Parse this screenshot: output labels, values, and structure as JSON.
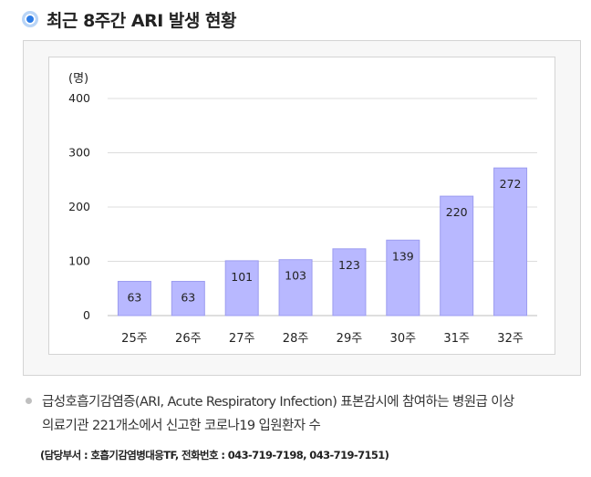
{
  "header": {
    "title": "최근 8주간 ARI 발생 현황"
  },
  "chart_data": {
    "type": "bar",
    "unit_label": "(명)",
    "categories": [
      "25주",
      "26주",
      "27주",
      "28주",
      "29주",
      "30주",
      "31주",
      "32주"
    ],
    "values": [
      63,
      63,
      101,
      103,
      123,
      139,
      220,
      272
    ],
    "y_ticks": [
      0,
      100,
      200,
      300,
      400
    ],
    "ylim": [
      0,
      400
    ],
    "grid": true,
    "legend": "none",
    "bar_color": "#b8b8ff",
    "bar_edge_color": "#9c9cf0"
  },
  "footnote": {
    "line1": "급성호흡기감염증(ARI, Acute Respiratory Infection) 표본감시에 참여하는 병원급 이상",
    "line2": "의료기관 221개소에서 신고한 코로나19 입원환자 수",
    "contact": "(담당부서 : 호흡기감염병대응TF, 전화번호 : 043-719-7198, 043-719-7151)"
  }
}
